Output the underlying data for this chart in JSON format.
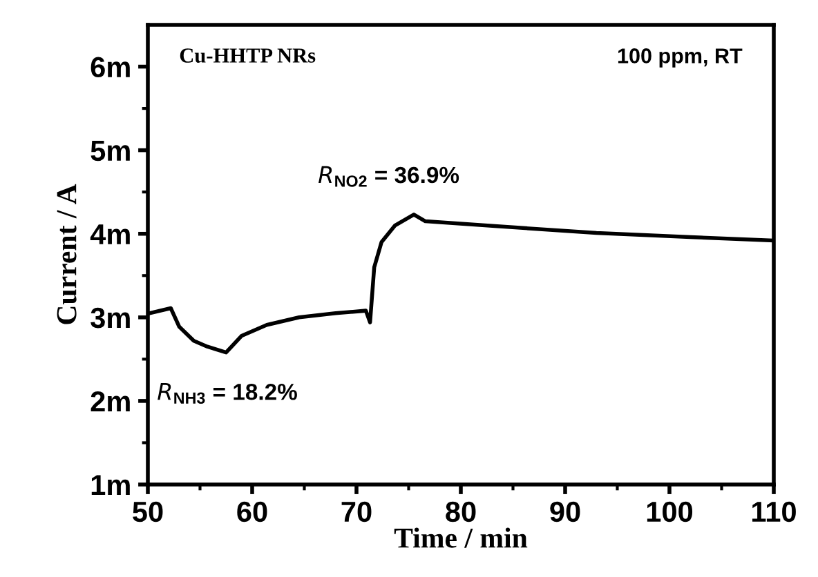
{
  "chart_data": {
    "type": "line",
    "xlabel": "Time / min",
    "ylabel": "Current / A",
    "xlim": [
      50,
      110
    ],
    "ylim": [
      1,
      6.5
    ],
    "xticks": [
      50,
      {
        "value": 55,
        "label": null
      },
      60,
      {
        "value": 65,
        "label": null
      },
      70,
      {
        "value": 75,
        "label": null
      },
      80,
      {
        "value": 85,
        "label": null
      },
      90,
      {
        "value": 95,
        "label": null
      },
      100,
      {
        "value": 105,
        "label": null
      },
      110
    ],
    "yticks": [
      {
        "value": 1,
        "label": "1m"
      },
      {
        "value": 1.5,
        "label": null
      },
      {
        "value": 2,
        "label": "2m"
      },
      {
        "value": 2.5,
        "label": null
      },
      {
        "value": 3,
        "label": "3m"
      },
      {
        "value": 3.5,
        "label": null
      },
      {
        "value": 4,
        "label": "4m"
      },
      {
        "value": 4.5,
        "label": null
      },
      {
        "value": 5,
        "label": "5m"
      },
      {
        "value": 5.5,
        "label": null
      },
      {
        "value": 6,
        "label": "6m"
      }
    ],
    "grid": false,
    "legend": false,
    "marker": "none",
    "line_style": "solid",
    "series": [
      {
        "color": "#000000",
        "x": [
          50.2,
          52.2,
          53.0,
          54.4,
          55.7,
          57.5,
          59.0,
          61.4,
          64.5,
          68.0,
          70.9,
          71.3,
          71.7,
          72.4,
          73.7,
          75.5,
          76.6,
          83.5,
          93.0,
          102.0,
          110.0
        ],
        "values": [
          3.05,
          3.11,
          2.89,
          2.72,
          2.65,
          2.58,
          2.78,
          2.91,
          3.0,
          3.05,
          3.08,
          2.94,
          3.6,
          3.9,
          4.1,
          4.23,
          4.15,
          4.09,
          4.01,
          3.96,
          3.92
        ]
      }
    ],
    "annotations": [
      "Cu-HHTP NRs",
      "100 ppm, RT",
      {
        "text": "R$_{NH3}$ = 18.2%",
        "x": 57.5,
        "y": 2.58
      },
      {
        "text": "R$_{NO2}$ = 36.9%",
        "x": 75.5,
        "y": 4.23
      }
    ]
  }
}
